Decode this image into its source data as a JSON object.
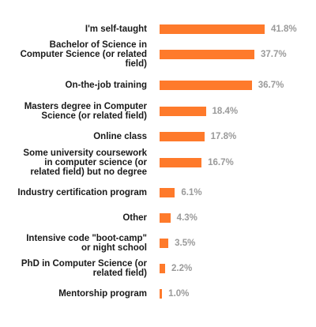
{
  "chart_data": {
    "type": "bar",
    "orientation": "horizontal",
    "categories": [
      "I'm self-taught",
      "Bachelor of Science in Computer Science (or related field)",
      "On-the-job training",
      "Masters degree in Computer Science (or related field)",
      "Online class",
      "Some university coursework in computer science (or related field) but no degree",
      "Industry certification program",
      "Other",
      "Intensive code \"boot-camp\" or night school",
      "PhD in Computer Science (or related field)",
      "Mentorship program"
    ],
    "category_lines": [
      [
        "I'm self-taught"
      ],
      [
        "Bachelor of Science in",
        "Computer Science (or related",
        "field)"
      ],
      [
        "On-the-job training"
      ],
      [
        "Masters degree in Computer",
        "Science (or related field)"
      ],
      [
        "Online class"
      ],
      [
        "Some university coursework",
        "in computer science (or",
        "related field) but no degree"
      ],
      [
        "Industry certification program"
      ],
      [
        "Other"
      ],
      [
        "Intensive code \"boot-camp\"",
        "or night school"
      ],
      [
        "PhD in Computer Science (or",
        "related field)"
      ],
      [
        "Mentorship program"
      ]
    ],
    "values": [
      41.8,
      37.7,
      36.7,
      18.4,
      17.8,
      16.7,
      6.1,
      4.3,
      3.5,
      2.2,
      1.0
    ],
    "value_labels": [
      "41.8%",
      "37.7%",
      "36.7%",
      "18.4%",
      "17.8%",
      "16.7%",
      "6.1%",
      "4.3%",
      "3.5%",
      "2.2%",
      "1.0%"
    ],
    "bar_color": "#fe7a2b",
    "value_color": "#9a9a9a",
    "label_color": "#1a1a1a",
    "grid": false,
    "legend": "none"
  }
}
